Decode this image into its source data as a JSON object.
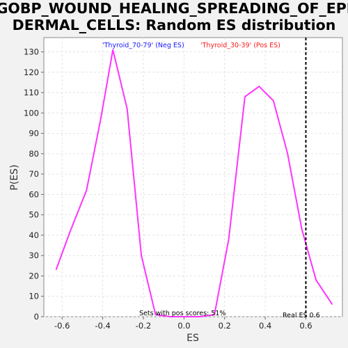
{
  "chart_data": {
    "type": "line",
    "title_lines": [
      "GOBP_WOUND_HEALING_SPREADING_OF_EPI",
      "DERMAL_CELLS: Random ES distribution"
    ],
    "xlabel": "ES",
    "ylabel": "P(ES)",
    "xlim": [
      -0.69,
      0.78
    ],
    "ylim": [
      0,
      137
    ],
    "x_ticks": [
      -0.6,
      -0.4,
      -0.2,
      0.0,
      0.2,
      0.4,
      0.6
    ],
    "x_tick_labels": [
      "-0.6",
      "-0.4",
      "-0.2",
      "0.0",
      "0.2",
      "0.4",
      "0.6"
    ],
    "y_ticks": [
      0,
      10,
      20,
      30,
      40,
      50,
      60,
      70,
      80,
      90,
      100,
      110,
      120,
      130
    ],
    "y_tick_labels": [
      "0",
      "10",
      "20",
      "30",
      "40",
      "50",
      "60",
      "70",
      "80",
      "90",
      "100",
      "110",
      "120",
      "130"
    ],
    "grid": true,
    "series": [
      {
        "color": "#ff33ff",
        "x": [
          -0.63,
          -0.56,
          -0.48,
          -0.41,
          -0.35,
          -0.28,
          -0.21,
          -0.14,
          -0.07,
          0.01,
          0.08,
          0.15,
          0.22,
          0.3,
          0.37,
          0.44,
          0.51,
          0.58,
          0.65,
          0.73
        ],
        "y": [
          23,
          42,
          62,
          97,
          131,
          102,
          30,
          1,
          0,
          0,
          0,
          1,
          38,
          108,
          113,
          106,
          80,
          43,
          18,
          6
        ]
      }
    ],
    "real_es": {
      "x": 0.6,
      "label": "Real ES 0.6"
    },
    "legend": {
      "neg_label": "'Thyroid_70-79' (Neg ES)",
      "neg_color": "#1a1aff",
      "pos_label": "'Thyroid_30-39' (Pos ES)",
      "pos_color": "#ff1a1a"
    },
    "annotation": "Sets with pos scores: 51%"
  }
}
